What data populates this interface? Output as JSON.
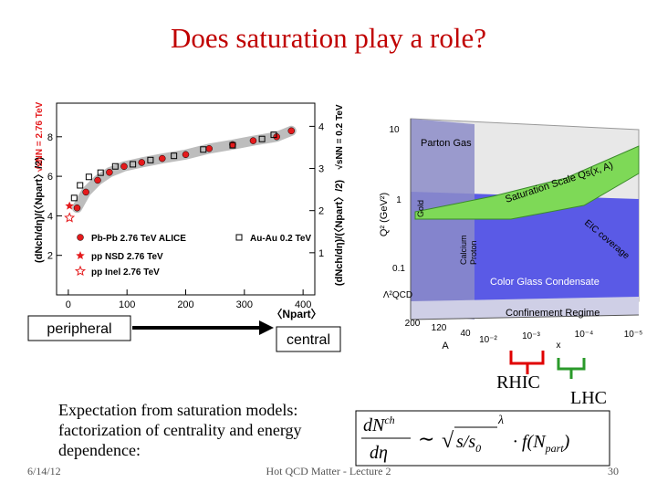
{
  "slide": {
    "title": "Does saturation play a role?",
    "peripheral": "peripheral",
    "central": "central",
    "rhic": "RHIC",
    "lhc": "LHC",
    "text_lines": [
      "Expectation from saturation models:",
      "factorization of centrality and energy",
      "dependence:"
    ],
    "formula": {
      "num": "dN",
      "num_sup": "ch",
      "den": "dη",
      "sim": "∼",
      "root": "√",
      "ratio": "s/s",
      "ratio_sub": "0",
      "exp": "λ",
      "tail": "· f(N",
      "tail_sub": "part",
      "close": ")"
    },
    "footer": {
      "date": "6/14/12",
      "center": "Hot QCD Matter - Lecture 2",
      "page": "30"
    }
  },
  "diagram": {
    "q_ticks": [
      "10",
      "1",
      "0.1"
    ],
    "q_label": "Q² (GeV²)",
    "lambda": "Λ²QCD",
    "a_ticks": [
      "200",
      "120",
      "40"
    ],
    "a_label": "A",
    "x_ticks": [
      "10⁻²",
      "10⁻³",
      "10⁻⁴",
      "10⁻⁵"
    ],
    "x_label": "x",
    "regions": [
      "Parton Gas",
      "Saturation Scale Qs(x, A)",
      "EIC coverage",
      "Gold",
      "Calcium",
      "Proton",
      "Color Glass Condensate",
      "Confinement Regime"
    ]
  },
  "chart_data": {
    "type": "scatter",
    "xlabel": "〈Npart〉",
    "ylabel": "(dNch/dη)/(〈Npart〉/2)",
    "y2label": "(dNch/dη)/(〈Npart〉/2)",
    "annotations": [
      "√sNN = 2.76 TeV",
      "√sNN = 0.2 TeV"
    ],
    "xlim": [
      -20,
      420
    ],
    "xticks": [
      0,
      100,
      200,
      300,
      400
    ],
    "ylim": [
      0,
      9.7
    ],
    "yticks": [
      2,
      4,
      6,
      8
    ],
    "y2lim": [
      0,
      4.55
    ],
    "y2ticks": [
      1,
      2,
      3,
      4
    ],
    "band_color": "#bdbdbd",
    "series": [
      {
        "name": "Pb-Pb 2.76 TeV ALICE",
        "color": "#e41a1c",
        "marker": "circle",
        "x": [
          15,
          30,
          50,
          70,
          95,
          125,
          160,
          200,
          240,
          280,
          315,
          355,
          380
        ],
        "values": [
          4.4,
          5.2,
          5.8,
          6.2,
          6.5,
          6.7,
          6.9,
          7.1,
          7.4,
          7.6,
          7.8,
          8.0,
          8.3
        ]
      },
      {
        "name": "pp NSD 2.76 TeV",
        "color": "#e41a1c",
        "marker": "star",
        "x": [
          2
        ],
        "values": [
          4.5
        ]
      },
      {
        "name": "pp Inel 2.76 TeV",
        "color": "#e41a1c",
        "marker": "open-star",
        "x": [
          2
        ],
        "values": [
          3.9
        ]
      },
      {
        "name": "Au-Au 0.2 TeV",
        "color": "#000000",
        "marker": "open-square",
        "axis": "y2",
        "x": [
          10,
          20,
          35,
          55,
          80,
          110,
          140,
          180,
          230,
          280,
          330,
          350
        ],
        "values": [
          2.3,
          2.6,
          2.8,
          2.9,
          3.05,
          3.1,
          3.2,
          3.3,
          3.45,
          3.55,
          3.7,
          3.8
        ]
      }
    ]
  }
}
